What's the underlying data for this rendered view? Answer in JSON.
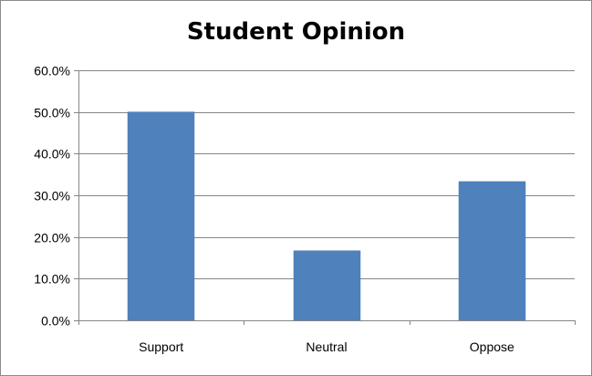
{
  "chart_data": {
    "type": "bar",
    "title": "Student Opinion",
    "xlabel": "",
    "ylabel": "",
    "categories": [
      "Support",
      "Neutral",
      "Oppose"
    ],
    "values": [
      50.0,
      16.7,
      33.3
    ],
    "value_format": "percent_one_decimal",
    "ylim": [
      0,
      60
    ],
    "y_ticks": [
      0,
      10,
      20,
      30,
      40,
      50,
      60
    ],
    "y_tick_labels": [
      "0.0%",
      "10.0%",
      "20.0%",
      "30.0%",
      "40.0%",
      "50.0%",
      "60.0%"
    ],
    "grid": true,
    "legend": "none",
    "colors": {
      "bar": "#4f81bd",
      "bar_edge": "#4a7ab3",
      "gridline": "#868686",
      "axis": "#868686"
    }
  }
}
